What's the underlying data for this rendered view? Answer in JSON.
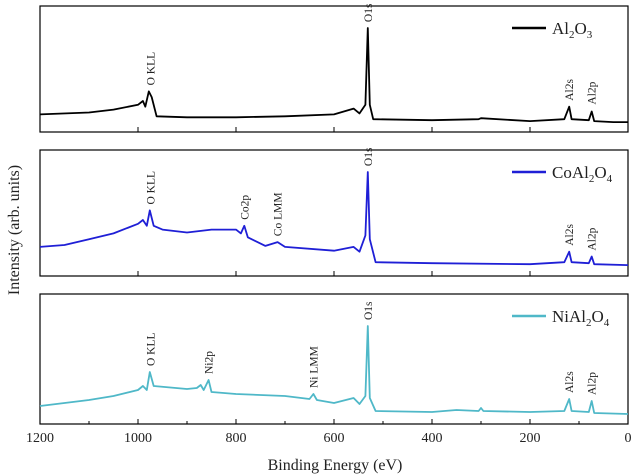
{
  "chart_data": {
    "type": "line",
    "xlabel": "Binding Energy (eV)",
    "ylabel": "Intensity (arb. units)",
    "xlim": [
      1200,
      0
    ],
    "x_reversed": true,
    "xticks": [
      1200,
      1000,
      800,
      600,
      400,
      200,
      0
    ],
    "grid": false,
    "legend_position": "top-right",
    "panels": [
      {
        "series_name_parts": [
          [
            "Al",
            ""
          ],
          [
            "2",
            "sub"
          ],
          [
            "O",
            ""
          ],
          [
            "3",
            "sub"
          ]
        ],
        "color": "#000000",
        "points": [
          [
            1200,
            0.1
          ],
          [
            1100,
            0.12
          ],
          [
            1050,
            0.15
          ],
          [
            1000,
            0.2
          ],
          [
            990,
            0.24
          ],
          [
            985,
            0.18
          ],
          [
            978,
            0.34
          ],
          [
            972,
            0.28
          ],
          [
            962,
            0.08
          ],
          [
            900,
            0.07
          ],
          [
            800,
            0.07
          ],
          [
            700,
            0.08
          ],
          [
            600,
            0.1
          ],
          [
            560,
            0.16
          ],
          [
            548,
            0.11
          ],
          [
            536,
            0.2
          ],
          [
            531,
            1.0
          ],
          [
            527,
            0.2
          ],
          [
            520,
            0.05
          ],
          [
            400,
            0.04
          ],
          [
            305,
            0.05
          ],
          [
            300,
            0.06
          ],
          [
            200,
            0.03
          ],
          [
            130,
            0.05
          ],
          [
            120,
            0.18
          ],
          [
            115,
            0.05
          ],
          [
            80,
            0.04
          ],
          [
            74,
            0.13
          ],
          [
            69,
            0.03
          ],
          [
            30,
            0.02
          ],
          [
            0,
            0.02
          ]
        ],
        "annotations": [
          {
            "text": "O KLL",
            "x": 975,
            "y": 0.36,
            "rotate": true
          },
          {
            "text": "O1s",
            "x": 531,
            "y": 1.02,
            "rotate": true
          },
          {
            "text": "Al2s",
            "x": 120,
            "y": 0.2,
            "rotate": true
          },
          {
            "text": "Al2p",
            "x": 74,
            "y": 0.16,
            "rotate": true
          }
        ]
      },
      {
        "series_name_parts": [
          [
            "CoAl",
            ""
          ],
          [
            "2",
            "sub"
          ],
          [
            "O",
            ""
          ],
          [
            "4",
            "sub"
          ]
        ],
        "color": "#1f1fd6",
        "points": [
          [
            1200,
            0.22
          ],
          [
            1150,
            0.24
          ],
          [
            1100,
            0.3
          ],
          [
            1050,
            0.36
          ],
          [
            1000,
            0.46
          ],
          [
            990,
            0.5
          ],
          [
            982,
            0.44
          ],
          [
            976,
            0.6
          ],
          [
            968,
            0.44
          ],
          [
            950,
            0.4
          ],
          [
            900,
            0.37
          ],
          [
            850,
            0.4
          ],
          [
            800,
            0.4
          ],
          [
            790,
            0.36
          ],
          [
            783,
            0.44
          ],
          [
            776,
            0.32
          ],
          [
            740,
            0.23
          ],
          [
            715,
            0.27
          ],
          [
            700,
            0.22
          ],
          [
            600,
            0.18
          ],
          [
            560,
            0.22
          ],
          [
            548,
            0.17
          ],
          [
            536,
            0.34
          ],
          [
            531,
            1.0
          ],
          [
            527,
            0.3
          ],
          [
            515,
            0.06
          ],
          [
            400,
            0.05
          ],
          [
            200,
            0.04
          ],
          [
            130,
            0.06
          ],
          [
            120,
            0.17
          ],
          [
            115,
            0.06
          ],
          [
            80,
            0.05
          ],
          [
            74,
            0.12
          ],
          [
            69,
            0.04
          ],
          [
            0,
            0.03
          ]
        ],
        "annotations": [
          {
            "text": "O KLL",
            "x": 975,
            "y": 0.62,
            "rotate": true
          },
          {
            "text": "Co2p",
            "x": 783,
            "y": 0.46,
            "rotate": true
          },
          {
            "text": "Co LMM",
            "x": 715,
            "y": 0.29,
            "rotate": true
          },
          {
            "text": "O1s",
            "x": 531,
            "y": 1.02,
            "rotate": true
          },
          {
            "text": "Al2s",
            "x": 120,
            "y": 0.19,
            "rotate": true
          },
          {
            "text": "Al2p",
            "x": 74,
            "y": 0.14,
            "rotate": true
          }
        ]
      },
      {
        "series_name_parts": [
          [
            "NiAl",
            ""
          ],
          [
            "2",
            "sub"
          ],
          [
            "O",
            ""
          ],
          [
            "4",
            "sub"
          ]
        ],
        "color": "#4fb8c8",
        "points": [
          [
            1200,
            0.1
          ],
          [
            1150,
            0.13
          ],
          [
            1100,
            0.16
          ],
          [
            1050,
            0.2
          ],
          [
            1000,
            0.26
          ],
          [
            990,
            0.3
          ],
          [
            982,
            0.26
          ],
          [
            976,
            0.44
          ],
          [
            968,
            0.3
          ],
          [
            900,
            0.27
          ],
          [
            880,
            0.28
          ],
          [
            872,
            0.31
          ],
          [
            866,
            0.26
          ],
          [
            856,
            0.36
          ],
          [
            850,
            0.24
          ],
          [
            800,
            0.22
          ],
          [
            700,
            0.2
          ],
          [
            650,
            0.17
          ],
          [
            642,
            0.22
          ],
          [
            635,
            0.16
          ],
          [
            600,
            0.13
          ],
          [
            560,
            0.18
          ],
          [
            548,
            0.12
          ],
          [
            536,
            0.2
          ],
          [
            531,
            0.9
          ],
          [
            527,
            0.18
          ],
          [
            515,
            0.05
          ],
          [
            400,
            0.04
          ],
          [
            350,
            0.06
          ],
          [
            305,
            0.05
          ],
          [
            300,
            0.08
          ],
          [
            295,
            0.05
          ],
          [
            200,
            0.04
          ],
          [
            130,
            0.05
          ],
          [
            120,
            0.17
          ],
          [
            115,
            0.05
          ],
          [
            80,
            0.04
          ],
          [
            74,
            0.15
          ],
          [
            69,
            0.03
          ],
          [
            0,
            0.02
          ]
        ],
        "annotations": [
          {
            "text": "O KLL",
            "x": 975,
            "y": 0.46,
            "rotate": true
          },
          {
            "text": "Ni2p",
            "x": 856,
            "y": 0.38,
            "rotate": true
          },
          {
            "text": "Ni LMM",
            "x": 642,
            "y": 0.24,
            "rotate": true
          },
          {
            "text": "O1s",
            "x": 531,
            "y": 0.92,
            "rotate": true
          },
          {
            "text": "Al2s",
            "x": 120,
            "y": 0.19,
            "rotate": true
          },
          {
            "text": "Al2p",
            "x": 74,
            "y": 0.17,
            "rotate": true
          }
        ]
      }
    ]
  }
}
